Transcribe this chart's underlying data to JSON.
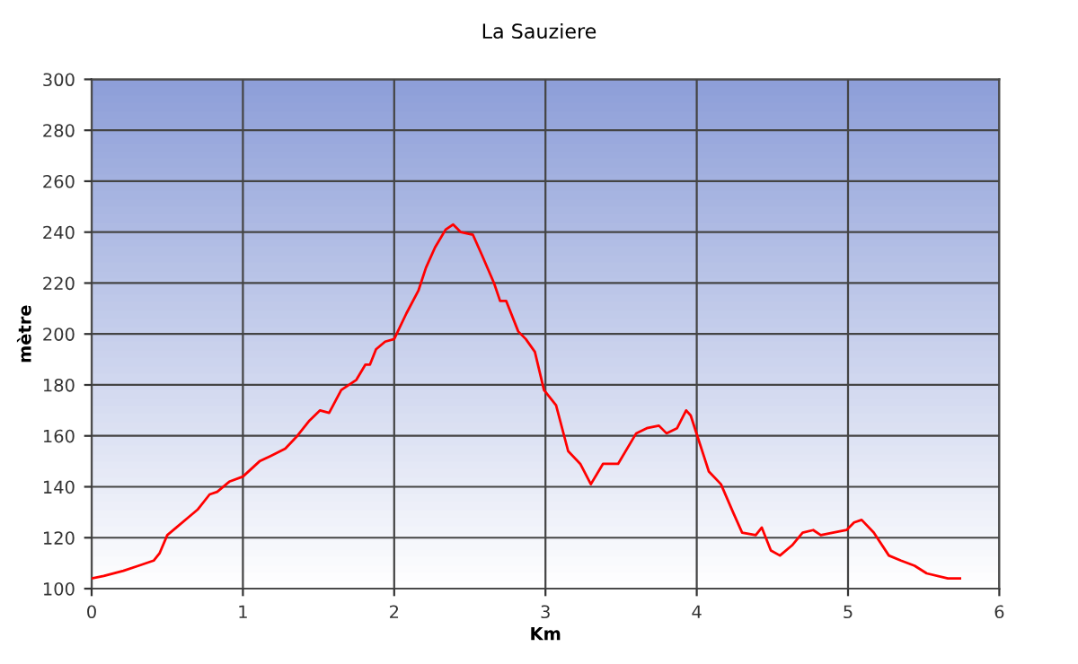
{
  "chart_data": {
    "type": "line",
    "title": "La Sauziere",
    "xlabel": "Km",
    "ylabel": "mètre",
    "xlim": [
      0,
      6
    ],
    "xticks": [
      0,
      1,
      2,
      3,
      4,
      5,
      6
    ],
    "ylim": [
      100,
      300
    ],
    "yticks": [
      100,
      120,
      140,
      160,
      180,
      200,
      220,
      240,
      260,
      280,
      300
    ],
    "grid": true,
    "marker": "none",
    "line_style": "solid",
    "series": [
      {
        "color": "#ff0000",
        "x": [
          0,
          0.08,
          0.21,
          0.31,
          0.41,
          0.45,
          0.5,
          0.56,
          0.64,
          0.7,
          0.78,
          0.83,
          0.91,
          1.0,
          1.11,
          1.18,
          1.28,
          1.36,
          1.44,
          1.51,
          1.57,
          1.65,
          1.75,
          1.81,
          1.84,
          1.88,
          1.94,
          2.0,
          2.08,
          2.16,
          2.21,
          2.27,
          2.34,
          2.39,
          2.44,
          2.52,
          2.58,
          2.66,
          2.7,
          2.74,
          2.82,
          2.87,
          2.93,
          2.99,
          3.07,
          3.15,
          3.23,
          3.3,
          3.38,
          3.48,
          3.6,
          3.67,
          3.75,
          3.8,
          3.87,
          3.93,
          3.96,
          4.02,
          4.08,
          4.16,
          4.24,
          4.3,
          4.39,
          4.43,
          4.49,
          4.55,
          4.63,
          4.7,
          4.77,
          4.82,
          4.9,
          4.99,
          5.04,
          5.09,
          5.17,
          5.27,
          5.35,
          5.44,
          5.52,
          5.66,
          5.74
        ],
        "values": [
          104,
          105,
          107,
          109,
          111,
          114,
          121,
          124,
          128,
          131,
          137,
          138,
          142,
          144,
          150,
          152,
          155,
          160,
          166,
          170,
          169,
          178,
          182,
          188,
          188,
          194,
          197,
          198,
          208,
          217,
          226,
          234,
          241,
          243,
          240,
          239,
          231,
          220,
          213,
          213,
          201,
          198,
          193,
          178,
          172,
          154,
          149,
          141,
          149,
          149,
          161,
          163,
          164,
          161,
          163,
          170,
          168,
          157,
          146,
          141,
          130,
          122,
          121,
          124,
          115,
          113,
          117,
          122,
          123,
          121,
          122,
          123,
          126,
          127,
          122,
          113,
          111,
          109,
          106,
          104,
          104
        ]
      }
    ]
  }
}
